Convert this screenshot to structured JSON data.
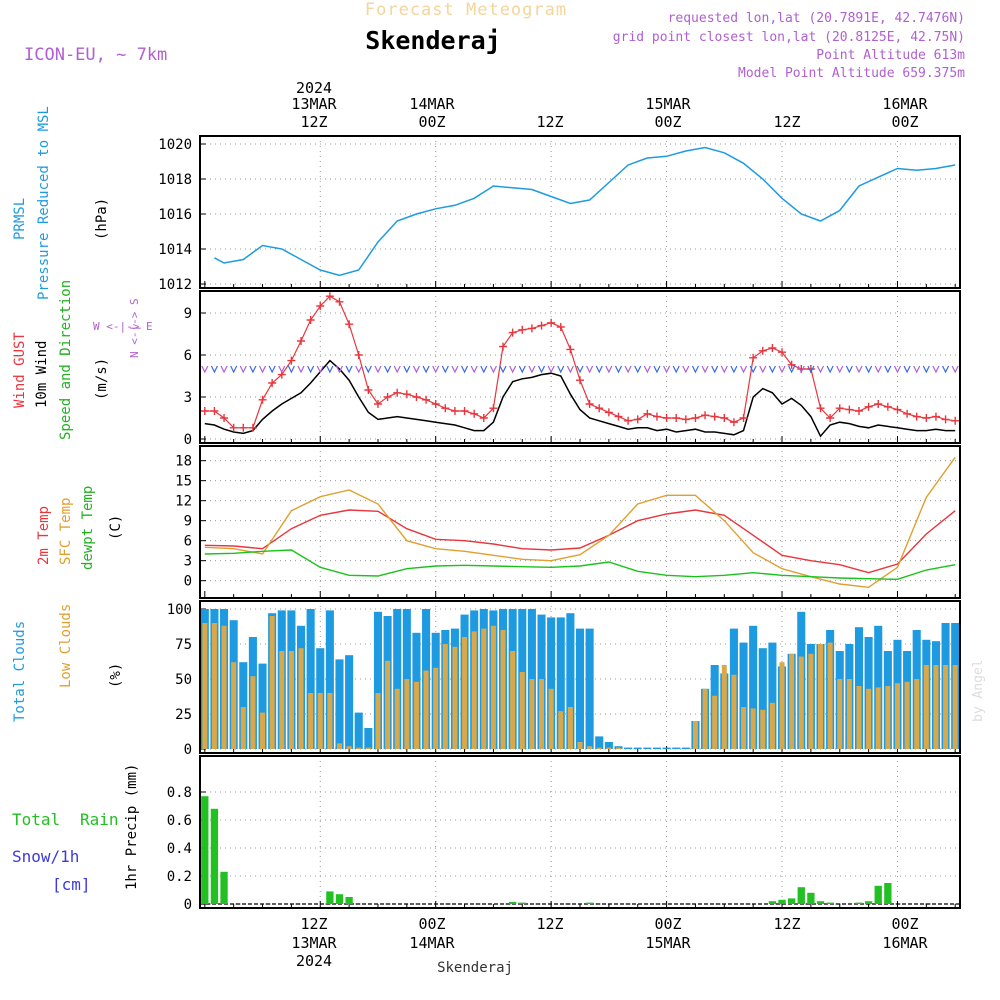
{
  "header": {
    "watermark_title": "Forecast Meteogram",
    "location": "Skenderaj",
    "model": "ICON-EU, ~ 7km",
    "requested": "requested lon,lat (20.7891E, 42.7476N)",
    "gridpoint": "grid point closest lon,lat (20.8125E, 42.75N)",
    "altitude": "Point Altitude 613m",
    "model_altitude": "Model Point Altitude 659.375m",
    "credit": "by Angel",
    "bottom_label": "Skenderaj"
  },
  "colors": {
    "pressure": "#1e9be0",
    "gust": "#e8363c",
    "wind": "#000000",
    "t2m": "#e8363c",
    "sfc": "#e0a030",
    "dew": "#1cc21c",
    "total_clouds": "#1e9be0",
    "low_clouds": "#d9a84a",
    "rain": "#22c022",
    "purple": "#b060d0",
    "snow": "#3a3ae0"
  },
  "axis_top": {
    "year": "2024",
    "labels": [
      {
        "day": "13MAR",
        "hour": "12Z"
      },
      {
        "day": "14MAR",
        "hour": "00Z"
      },
      {
        "day": "",
        "hour": "12Z"
      },
      {
        "day": "15MAR",
        "hour": "00Z"
      },
      {
        "day": "",
        "hour": "12Z"
      },
      {
        "day": "16MAR",
        "hour": "00Z"
      }
    ]
  },
  "axis_bottom": {
    "year": "2024",
    "labels": [
      {
        "hour": "12Z",
        "day": "13MAR"
      },
      {
        "hour": "00Z",
        "day": "14MAR"
      },
      {
        "hour": "12Z",
        "day": ""
      },
      {
        "hour": "00Z",
        "day": "15MAR"
      },
      {
        "hour": "12Z",
        "day": ""
      },
      {
        "hour": "00Z",
        "day": "16MAR"
      }
    ]
  },
  "panel_labels": {
    "pressure": {
      "line1": "PRMSL",
      "line2": "Pressure Reduced to MSL",
      "unit": "(hPa)"
    },
    "wind": {
      "gust": "Wind GUST",
      "wind10": "10m Wind",
      "dir": "Speed and Direction",
      "unit": "(m/s)",
      "compass_ns": "N <-|-> S",
      "compass_we": "W <-|-> E"
    },
    "temp": {
      "t2m": "2m Temp",
      "sfc": "SFC Temp",
      "dew": "dewpt Temp",
      "unit": "(C)"
    },
    "clouds": {
      "total": "Total Clouds",
      "low": "Low Clouds",
      "unit": "(%)"
    },
    "precip": {
      "total": "Total",
      "rain": "Rain",
      "snow": "Snow/1h",
      "snow_unit": "[cm]",
      "axis": "1hr Precip (mm)"
    }
  },
  "chart_data": [
    {
      "type": "line",
      "panel": "pressure",
      "x_label": "hours since 13MAR 00Z",
      "ylim": [
        1012,
        1020
      ],
      "yticks": [
        1012,
        1014,
        1016,
        1018,
        1020
      ],
      "x": [
        1,
        2,
        4,
        6,
        8,
        10,
        12,
        14,
        16,
        18,
        20,
        22,
        24,
        26,
        28,
        30,
        32,
        34,
        36,
        38,
        40,
        42,
        44,
        46,
        48,
        50,
        52,
        54,
        56,
        58,
        60,
        62,
        64,
        66,
        68,
        70,
        72,
        74,
        76,
        78
      ],
      "series": [
        {
          "name": "PRMSL",
          "values": [
            1013.5,
            1013.2,
            1013.4,
            1014.2,
            1014.0,
            1013.4,
            1012.8,
            1012.5,
            1012.8,
            1014.4,
            1015.6,
            1016.0,
            1016.3,
            1016.5,
            1016.9,
            1017.6,
            1017.5,
            1017.4,
            1017.0,
            1016.6,
            1016.8,
            1017.8,
            1018.8,
            1019.2,
            1019.3,
            1019.6,
            1019.8,
            1019.5,
            1018.9,
            1018.0,
            1016.9,
            1016.0,
            1015.6,
            1016.2,
            1017.6,
            1018.1,
            1018.6,
            1018.5,
            1018.6,
            1018.8
          ]
        }
      ]
    },
    {
      "type": "line",
      "panel": "wind",
      "ylim": [
        0,
        10
      ],
      "yticks": [
        0,
        3,
        6,
        9
      ],
      "x": [
        0,
        1,
        2,
        3,
        4,
        5,
        6,
        7,
        8,
        9,
        10,
        11,
        12,
        13,
        14,
        15,
        16,
        17,
        18,
        19,
        20,
        21,
        22,
        23,
        24,
        25,
        26,
        27,
        28,
        29,
        30,
        31,
        32,
        33,
        34,
        35,
        36,
        37,
        38,
        39,
        40,
        41,
        42,
        43,
        44,
        45,
        46,
        47,
        48,
        49,
        50,
        51,
        52,
        53,
        54,
        55,
        56,
        57,
        58,
        59,
        60,
        61,
        62,
        63,
        64,
        65,
        66,
        67,
        68,
        69,
        70,
        71,
        72,
        73,
        74,
        75,
        76,
        77,
        78
      ],
      "series": [
        {
          "name": "Wind GUST",
          "values": [
            2.0,
            2.0,
            1.5,
            0.8,
            0.8,
            0.8,
            2.8,
            4.0,
            4.6,
            5.6,
            7.0,
            8.5,
            9.5,
            10.2,
            9.8,
            8.2,
            6.0,
            3.5,
            2.5,
            3.0,
            3.3,
            3.2,
            3.0,
            2.8,
            2.5,
            2.2,
            2.0,
            2.0,
            1.8,
            1.5,
            2.2,
            6.6,
            7.6,
            7.8,
            7.9,
            8.1,
            8.3,
            8.0,
            6.4,
            4.2,
            2.5,
            2.2,
            1.9,
            1.6,
            1.3,
            1.4,
            1.8,
            1.6,
            1.5,
            1.5,
            1.4,
            1.5,
            1.7,
            1.6,
            1.5,
            1.2,
            1.5,
            5.8,
            6.3,
            6.5,
            6.2,
            5.3,
            5.0,
            5.0,
            2.2,
            1.5,
            2.2,
            2.1,
            2.0,
            2.3,
            2.5,
            2.3,
            2.1,
            1.8,
            1.6,
            1.5,
            1.6,
            1.4,
            1.3
          ]
        },
        {
          "name": "10m Wind",
          "values": [
            1.1,
            1.0,
            0.7,
            0.5,
            0.4,
            0.6,
            1.4,
            2.0,
            2.5,
            2.9,
            3.3,
            4.0,
            4.8,
            5.6,
            5.0,
            4.2,
            3.0,
            1.9,
            1.4,
            1.5,
            1.6,
            1.5,
            1.4,
            1.3,
            1.2,
            1.1,
            1.0,
            0.8,
            0.6,
            0.6,
            1.2,
            3.0,
            4.1,
            4.3,
            4.4,
            4.6,
            4.7,
            4.5,
            3.2,
            2.1,
            1.5,
            1.3,
            1.1,
            0.9,
            0.7,
            0.8,
            0.8,
            0.6,
            0.7,
            0.5,
            0.6,
            0.7,
            0.5,
            0.5,
            0.4,
            0.3,
            0.6,
            3.0,
            3.6,
            3.3,
            2.5,
            2.9,
            2.4,
            1.6,
            0.2,
            1.0,
            1.2,
            1.1,
            0.9,
            0.8,
            1.0,
            0.9,
            0.8,
            0.7,
            0.6,
            0.6,
            0.7,
            0.6,
            0.6
          ]
        }
      ]
    },
    {
      "type": "line",
      "panel": "temperature",
      "ylim": [
        -2,
        19
      ],
      "yticks": [
        0,
        3,
        6,
        9,
        12,
        15,
        18
      ],
      "x": [
        0,
        3,
        6,
        9,
        12,
        15,
        18,
        21,
        24,
        27,
        30,
        33,
        36,
        39,
        42,
        45,
        48,
        51,
        54,
        57,
        60,
        63,
        66,
        69,
        72,
        75,
        78
      ],
      "series": [
        {
          "name": "2m Temp",
          "values": [
            5.3,
            5.2,
            4.8,
            7.8,
            9.8,
            10.6,
            10.4,
            7.8,
            6.2,
            6.0,
            5.5,
            4.8,
            4.6,
            4.9,
            6.8,
            9.0,
            10.0,
            10.6,
            9.8,
            6.8,
            3.8,
            3.0,
            2.4,
            1.2,
            2.5,
            7.0,
            10.5
          ]
        },
        {
          "name": "SFC Temp",
          "values": [
            5.0,
            4.8,
            4.0,
            10.5,
            12.6,
            13.6,
            11.5,
            6.0,
            4.8,
            4.4,
            3.8,
            3.2,
            3.0,
            3.9,
            6.8,
            11.5,
            12.8,
            12.8,
            9.0,
            4.2,
            1.8,
            0.6,
            -0.5,
            -1.0,
            2.0,
            12.5,
            18.5
          ]
        },
        {
          "name": "dewpt Temp",
          "values": [
            4.0,
            4.1,
            4.4,
            4.6,
            2.0,
            0.8,
            0.7,
            1.8,
            2.2,
            2.3,
            2.2,
            2.1,
            2.0,
            2.2,
            2.8,
            1.4,
            0.8,
            0.6,
            0.8,
            1.2,
            0.8,
            0.6,
            0.4,
            0.3,
            0.2,
            1.6,
            2.4
          ]
        }
      ]
    },
    {
      "type": "bar",
      "panel": "clouds",
      "ylim": [
        0,
        100
      ],
      "yticks": [
        0,
        25,
        50,
        75,
        100
      ],
      "x": [
        0,
        1,
        2,
        3,
        4,
        5,
        6,
        7,
        8,
        9,
        10,
        11,
        12,
        13,
        14,
        15,
        16,
        17,
        18,
        19,
        20,
        21,
        22,
        23,
        24,
        25,
        26,
        27,
        28,
        29,
        30,
        31,
        32,
        33,
        34,
        35,
        36,
        37,
        38,
        39,
        40,
        41,
        42,
        43,
        44,
        45,
        46,
        47,
        48,
        49,
        50,
        51,
        52,
        53,
        54,
        55,
        56,
        57,
        58,
        59,
        60,
        61,
        62,
        63,
        64,
        65,
        66,
        67,
        68,
        69,
        70,
        71,
        72,
        73,
        74,
        75,
        76,
        77,
        78
      ],
      "series": [
        {
          "name": "Total Clouds",
          "values": [
            100,
            100,
            100,
            92,
            62,
            80,
            61,
            97,
            99,
            99,
            88,
            100,
            72,
            99,
            64,
            67,
            26,
            15,
            98,
            95,
            100,
            100,
            83,
            100,
            83,
            85,
            86,
            96,
            99,
            100,
            99,
            100,
            100,
            100,
            100,
            96,
            94,
            94,
            97,
            86,
            86,
            9,
            5,
            2,
            1,
            1,
            1,
            1,
            1,
            1,
            1,
            20,
            43,
            60,
            54,
            86,
            76,
            88,
            72,
            76,
            59,
            68,
            98,
            75,
            75,
            85,
            70,
            75,
            87,
            80,
            88,
            70,
            78,
            70,
            85,
            78,
            77,
            90,
            90
          ]
        },
        {
          "name": "Low Clouds",
          "values": [
            90,
            90,
            88,
            62,
            30,
            52,
            26,
            95,
            70,
            70,
            72,
            40,
            40,
            40,
            4,
            2,
            1,
            1,
            40,
            63,
            43,
            50,
            48,
            56,
            58,
            75,
            73,
            80,
            84,
            86,
            88,
            85,
            70,
            55,
            50,
            50,
            43,
            27,
            30,
            5,
            2,
            1,
            1,
            1,
            0,
            0,
            0,
            0,
            0,
            0,
            0,
            20,
            43,
            38,
            60,
            53,
            30,
            29,
            28,
            33,
            62,
            68,
            66,
            68,
            75,
            76,
            50,
            50,
            45,
            43,
            44,
            45,
            47,
            48,
            50,
            60,
            60,
            60,
            60
          ]
        }
      ]
    },
    {
      "type": "bar",
      "panel": "precip",
      "ylim": [
        0,
        1
      ],
      "yticks": [
        0,
        0.2,
        0.4,
        0.6,
        0.8
      ],
      "x": [
        0,
        1,
        2,
        3,
        4,
        5,
        6,
        7,
        8,
        9,
        10,
        11,
        12,
        13,
        14,
        15,
        16,
        17,
        18,
        19,
        20,
        21,
        22,
        23,
        24,
        25,
        26,
        27,
        28,
        29,
        30,
        31,
        32,
        33,
        34,
        35,
        36,
        37,
        38,
        39,
        40,
        41,
        42,
        43,
        44,
        45,
        46,
        47,
        48,
        49,
        50,
        51,
        52,
        53,
        54,
        55,
        56,
        57,
        58,
        59,
        60,
        61,
        62,
        63,
        64,
        65,
        66,
        67,
        68,
        69,
        70,
        71,
        72,
        73,
        74,
        75,
        76,
        77,
        78
      ],
      "series": [
        {
          "name": "Total Rain",
          "values": [
            0.77,
            0.68,
            0.23,
            0,
            0,
            0,
            0,
            0,
            0,
            0,
            0,
            0,
            0,
            0.09,
            0.07,
            0.05,
            0,
            0,
            0,
            0,
            0,
            0,
            0,
            0,
            0,
            0,
            0,
            0,
            0,
            0,
            0,
            0,
            0.015,
            0.01,
            0,
            0,
            0,
            0,
            0,
            0,
            0.01,
            0,
            0,
            0,
            0,
            0,
            0,
            0,
            0,
            0,
            0,
            0,
            0,
            0,
            0,
            0,
            0,
            0,
            0,
            0.02,
            0.03,
            0.04,
            0.12,
            0.08,
            0.02,
            0.01,
            0,
            0,
            0.01,
            0.02,
            0.13,
            0.15,
            0,
            0,
            0,
            0,
            0,
            0,
            0
          ]
        }
      ]
    }
  ]
}
